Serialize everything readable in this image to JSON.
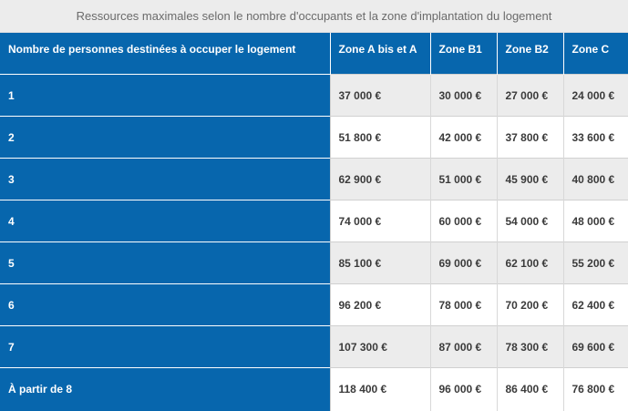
{
  "table": {
    "caption": "Ressources maximales selon le nombre d'occupants et la zone d'implantation du logement",
    "headers": [
      "Nombre de personnes destinées à occuper le logement",
      "Zone A bis et A",
      "Zone B1",
      "Zone B2",
      "Zone C"
    ],
    "rows": [
      [
        "1",
        "37 000 €",
        "30 000 €",
        "27 000 €",
        "24 000 €"
      ],
      [
        "2",
        "51 800 €",
        "42 000 €",
        "37 800 €",
        "33 600 €"
      ],
      [
        "3",
        "62 900 €",
        "51 000 €",
        "45 900 €",
        "40 800 €"
      ],
      [
        "4",
        "74 000 €",
        "60 000 €",
        "54 000 €",
        "48 000 €"
      ],
      [
        "5",
        "85 100 €",
        "69 000 €",
        "62 100 €",
        "55 200 €"
      ],
      [
        "6",
        "96 200 €",
        "78 000 €",
        "70 200 €",
        "62 400 €"
      ],
      [
        "7",
        "107 300 €",
        "87 000 €",
        "78 300 €",
        "69 600 €"
      ],
      [
        "À partir de 8",
        "118 400 €",
        "96 000 €",
        "86 400 €",
        "76 800 €"
      ]
    ]
  },
  "colors": {
    "header_blue": "#0766ad",
    "row_gray": "#ececec",
    "text_dark": "#3b3b3b"
  }
}
